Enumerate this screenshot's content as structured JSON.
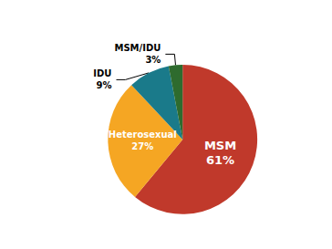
{
  "chart_data": {
    "type": "pie",
    "categories": [
      "MSM",
      "Heterosexual",
      "IDU",
      "MSM/IDU"
    ],
    "values": [
      61,
      27,
      9,
      3
    ],
    "value_labels": [
      "61%",
      "27%",
      "9%",
      "3%"
    ],
    "colors": [
      "#C0392B",
      "#F5A623",
      "#1A7A8A",
      "#2E6B2E"
    ],
    "data_labels": true
  }
}
